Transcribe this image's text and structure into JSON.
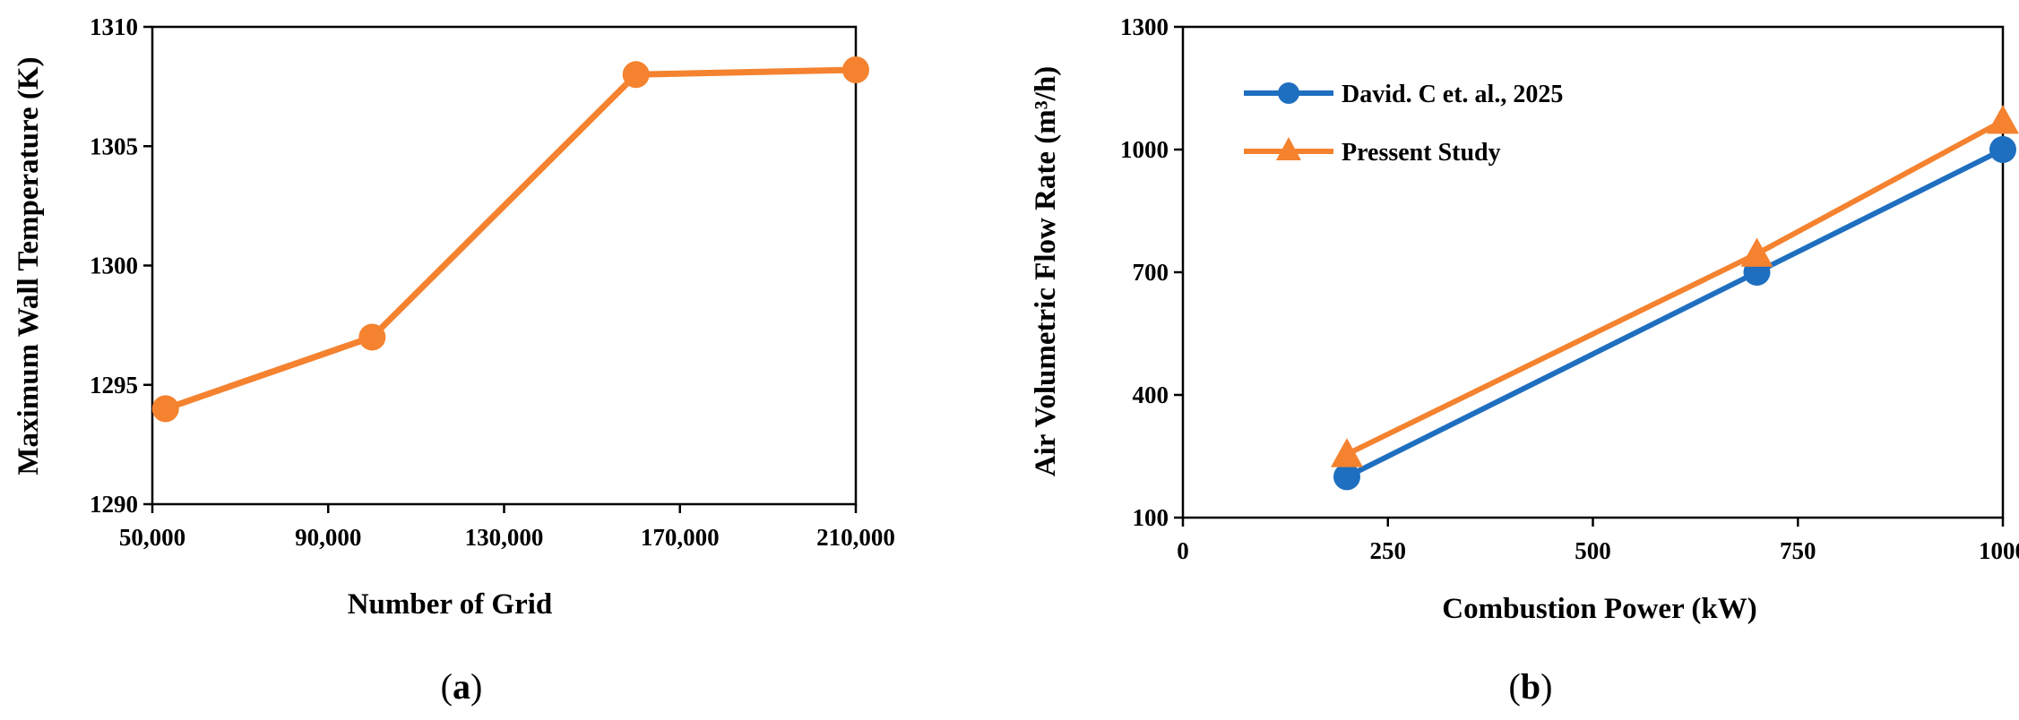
{
  "colors": {
    "blue": "#1F6FC0",
    "orange": "#F4822F",
    "axis": "#000000"
  },
  "chart_data": [
    {
      "panel": "a",
      "type": "line",
      "title": "",
      "xlabel": "Number of Grid",
      "ylabel": "Maximum Wall Temperature (K)",
      "xlim": [
        50000,
        210000
      ],
      "ylim": [
        1290,
        1310
      ],
      "xticks": [
        50000,
        90000,
        130000,
        170000,
        210000
      ],
      "xtick_labels": [
        "50,000",
        "90,000",
        "130,000",
        "170,000",
        "210,000"
      ],
      "yticks": [
        1290,
        1295,
        1300,
        1305,
        1310
      ],
      "ytick_labels": [
        "1290",
        "1295",
        "1300",
        "1305",
        "1310"
      ],
      "grid": false,
      "series": [
        {
          "name": "",
          "color": "#F4822F",
          "marker": "circle",
          "x": [
            53000,
            100000,
            160000,
            210000
          ],
          "y": [
            1294,
            1297,
            1308,
            1308.2
          ]
        }
      ],
      "label_prefix": "(",
      "label_letter": "a",
      "label_suffix": ")"
    },
    {
      "panel": "b",
      "type": "line",
      "title": "",
      "xlabel": "Combustion Power (kW)",
      "ylabel": "Air Volumetric Flow Rate (m³/h)",
      "xlim": [
        0,
        1000
      ],
      "ylim": [
        100,
        1300
      ],
      "xticks": [
        0,
        250,
        500,
        750,
        1000
      ],
      "xtick_labels": [
        "0",
        "250",
        "500",
        "750",
        "1000"
      ],
      "yticks": [
        100,
        400,
        700,
        1000,
        1300
      ],
      "ytick_labels": [
        "100",
        "400",
        "700",
        "1000",
        "1300"
      ],
      "grid": false,
      "legend_position": "top-left",
      "series": [
        {
          "name": "David. C et. al., 2025",
          "color": "#1F6FC0",
          "marker": "circle",
          "x": [
            200,
            700,
            1000
          ],
          "y": [
            200,
            700,
            1000
          ]
        },
        {
          "name": "Pressent Study",
          "color": "#F4822F",
          "marker": "triangle",
          "x": [
            200,
            700,
            1000
          ],
          "y": [
            255,
            745,
            1070
          ]
        }
      ],
      "label_prefix": "(",
      "label_letter": "b",
      "label_suffix": ")"
    }
  ]
}
